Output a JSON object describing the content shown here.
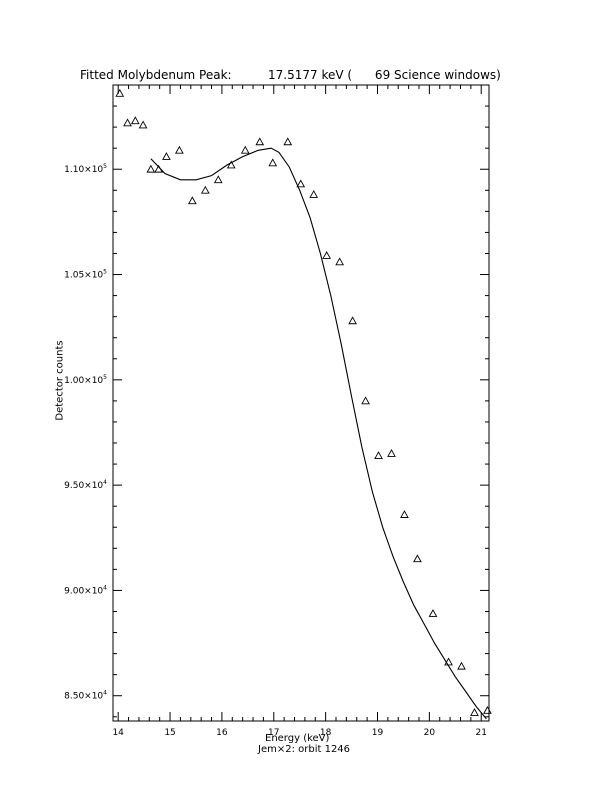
{
  "title_left": "Fitted Molybdenum Peak:",
  "title_right": "17.5177 keV (      69 Science windows)",
  "chart_data": {
    "type": "scatter",
    "xlabel": "Energy (keV)",
    "xlabel_sub": "Jem×2: orbit 1246",
    "ylabel": "Detector counts",
    "xlim": [
      13.9,
      21.15
    ],
    "ylim": [
      83800,
      114000
    ],
    "x_ticks": [
      14,
      15,
      16,
      17,
      18,
      19,
      20,
      21
    ],
    "y_ticks": [
      {
        "value": 85000,
        "mantissa": "8.50×10",
        "exp": "4"
      },
      {
        "value": 90000,
        "mantissa": "9.00×10",
        "exp": "4"
      },
      {
        "value": 95000,
        "mantissa": "9.50×10",
        "exp": "4"
      },
      {
        "value": 100000,
        "mantissa": "1.00×10",
        "exp": "5"
      },
      {
        "value": 105000,
        "mantissa": "1.05×10",
        "exp": "5"
      },
      {
        "value": 110000,
        "mantissa": "1.10×10",
        "exp": "5"
      }
    ],
    "series": [
      {
        "type": "scatter",
        "marker": "triangle",
        "x": [
          14.03,
          14.18,
          14.33,
          14.48,
          14.63,
          14.78,
          14.93,
          15.18,
          15.43,
          15.68,
          15.93,
          16.18,
          16.45,
          16.73,
          16.98,
          17.27,
          17.52,
          17.77,
          18.02,
          18.27,
          18.52,
          18.77,
          19.02,
          19.27,
          19.52,
          19.77,
          20.07,
          20.37,
          20.62,
          20.87,
          21.12
        ],
        "y": [
          113600,
          112200,
          112300,
          112100,
          110000,
          110000,
          110600,
          110900,
          108500,
          109000,
          109500,
          110200,
          110900,
          111300,
          110300,
          111300,
          109300,
          108800,
          105900,
          105600,
          102800,
          99000,
          96400,
          96500,
          93600,
          91500,
          88900,
          86600,
          86400,
          84200,
          84300
        ]
      },
      {
        "type": "line",
        "x": [
          14.63,
          14.9,
          15.2,
          15.5,
          15.8,
          16.1,
          16.4,
          16.7,
          16.95,
          17.1,
          17.3,
          17.5,
          17.7,
          17.9,
          18.1,
          18.3,
          18.5,
          18.7,
          18.9,
          19.1,
          19.3,
          19.5,
          19.7,
          19.9,
          20.1,
          20.3,
          20.5,
          20.7,
          20.9,
          21.1
        ],
        "y": [
          110500,
          109800,
          109500,
          109500,
          109700,
          110200,
          110600,
          110900,
          111000,
          110800,
          110100,
          109000,
          107700,
          106000,
          104000,
          101700,
          99200,
          96800,
          94700,
          93000,
          91600,
          90400,
          89300,
          88400,
          87500,
          86700,
          85900,
          85200,
          84500,
          83900
        ]
      }
    ]
  }
}
